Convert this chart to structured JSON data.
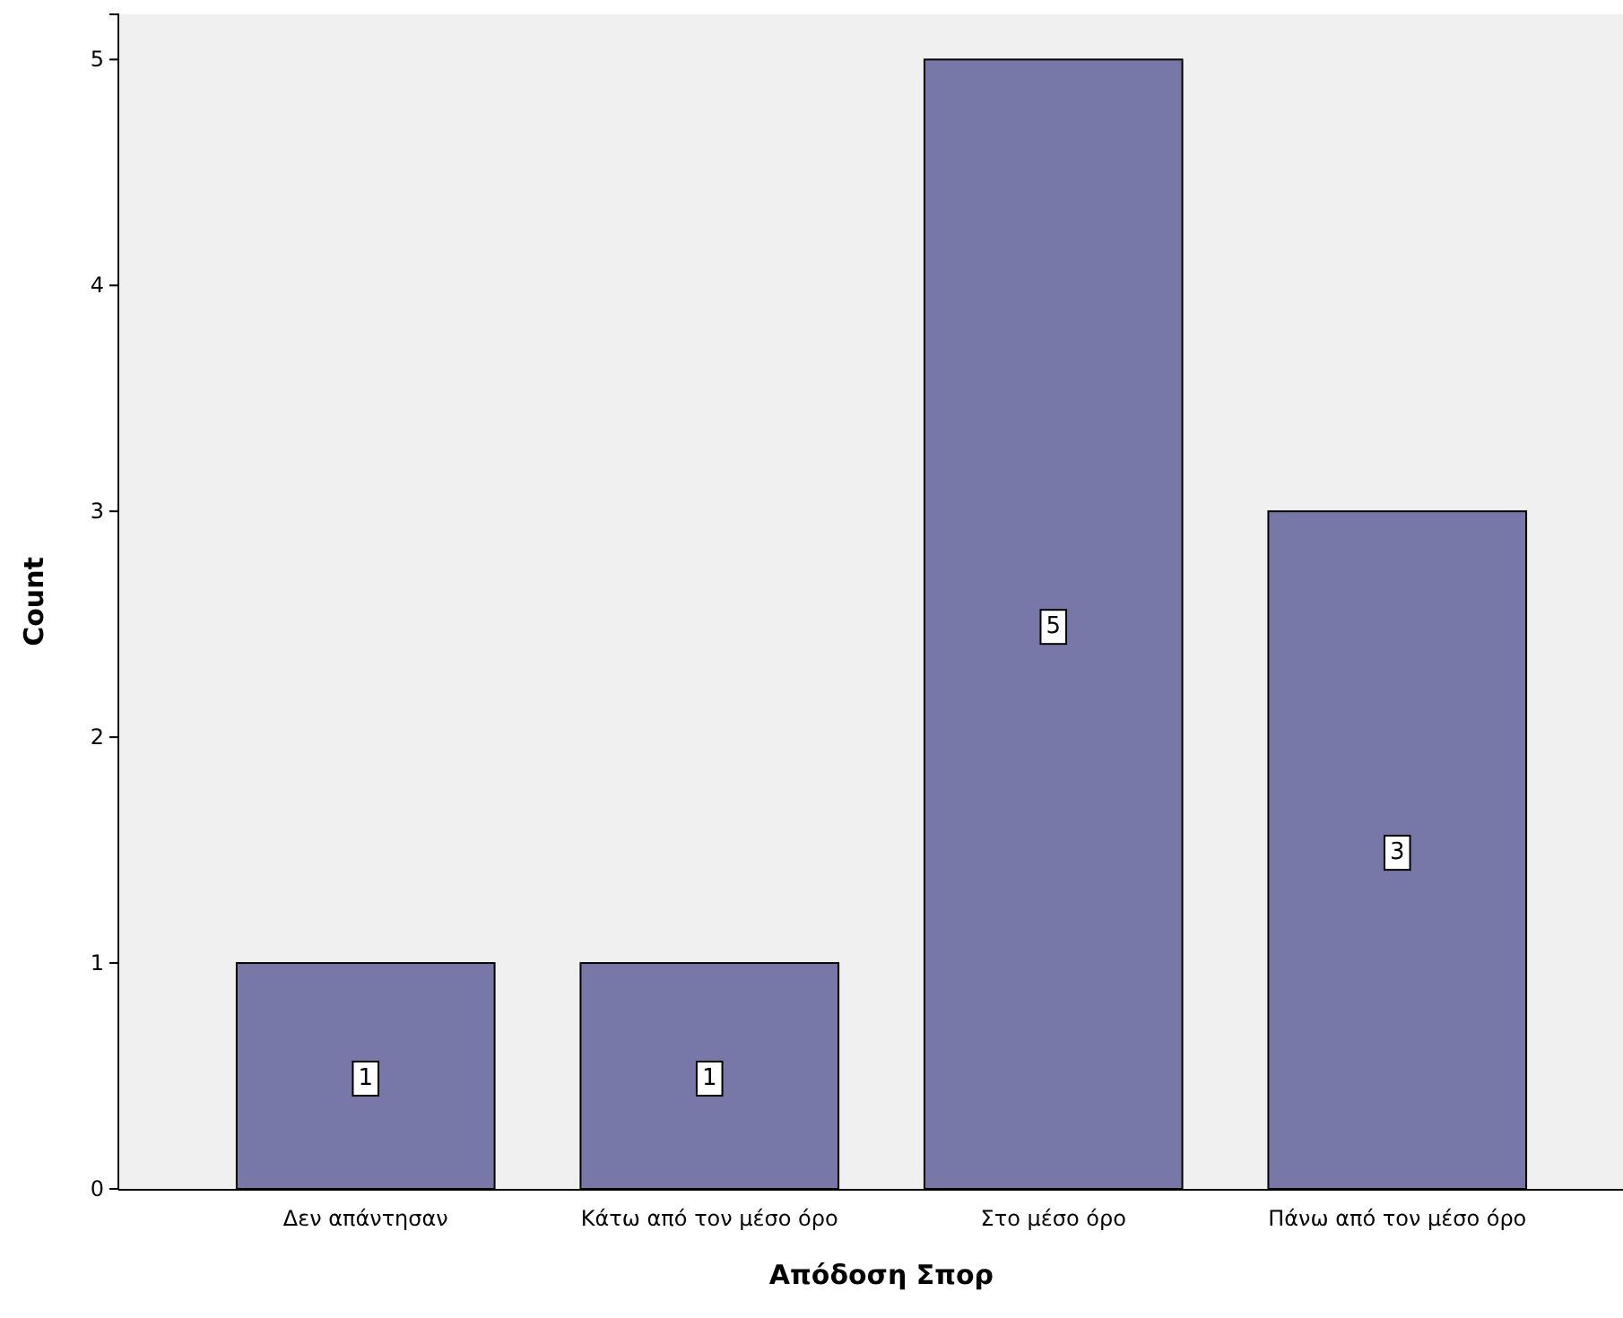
{
  "chart_data": {
    "type": "bar",
    "xlabel": "Απόδοση Σπορ",
    "ylabel": "Count",
    "categories": [
      "Δεν απάντησαν",
      "Κάτω από τον μέσο όρο",
      "Στο μέσο όρο",
      "Πάνω από τον μέσο όρο"
    ],
    "values": [
      1,
      1,
      5,
      3
    ],
    "color": "#7878a8",
    "ylim": [
      0,
      5.2
    ],
    "yticks": [
      0,
      1,
      2,
      3,
      4,
      5
    ],
    "grid": false,
    "data_labels": true
  }
}
